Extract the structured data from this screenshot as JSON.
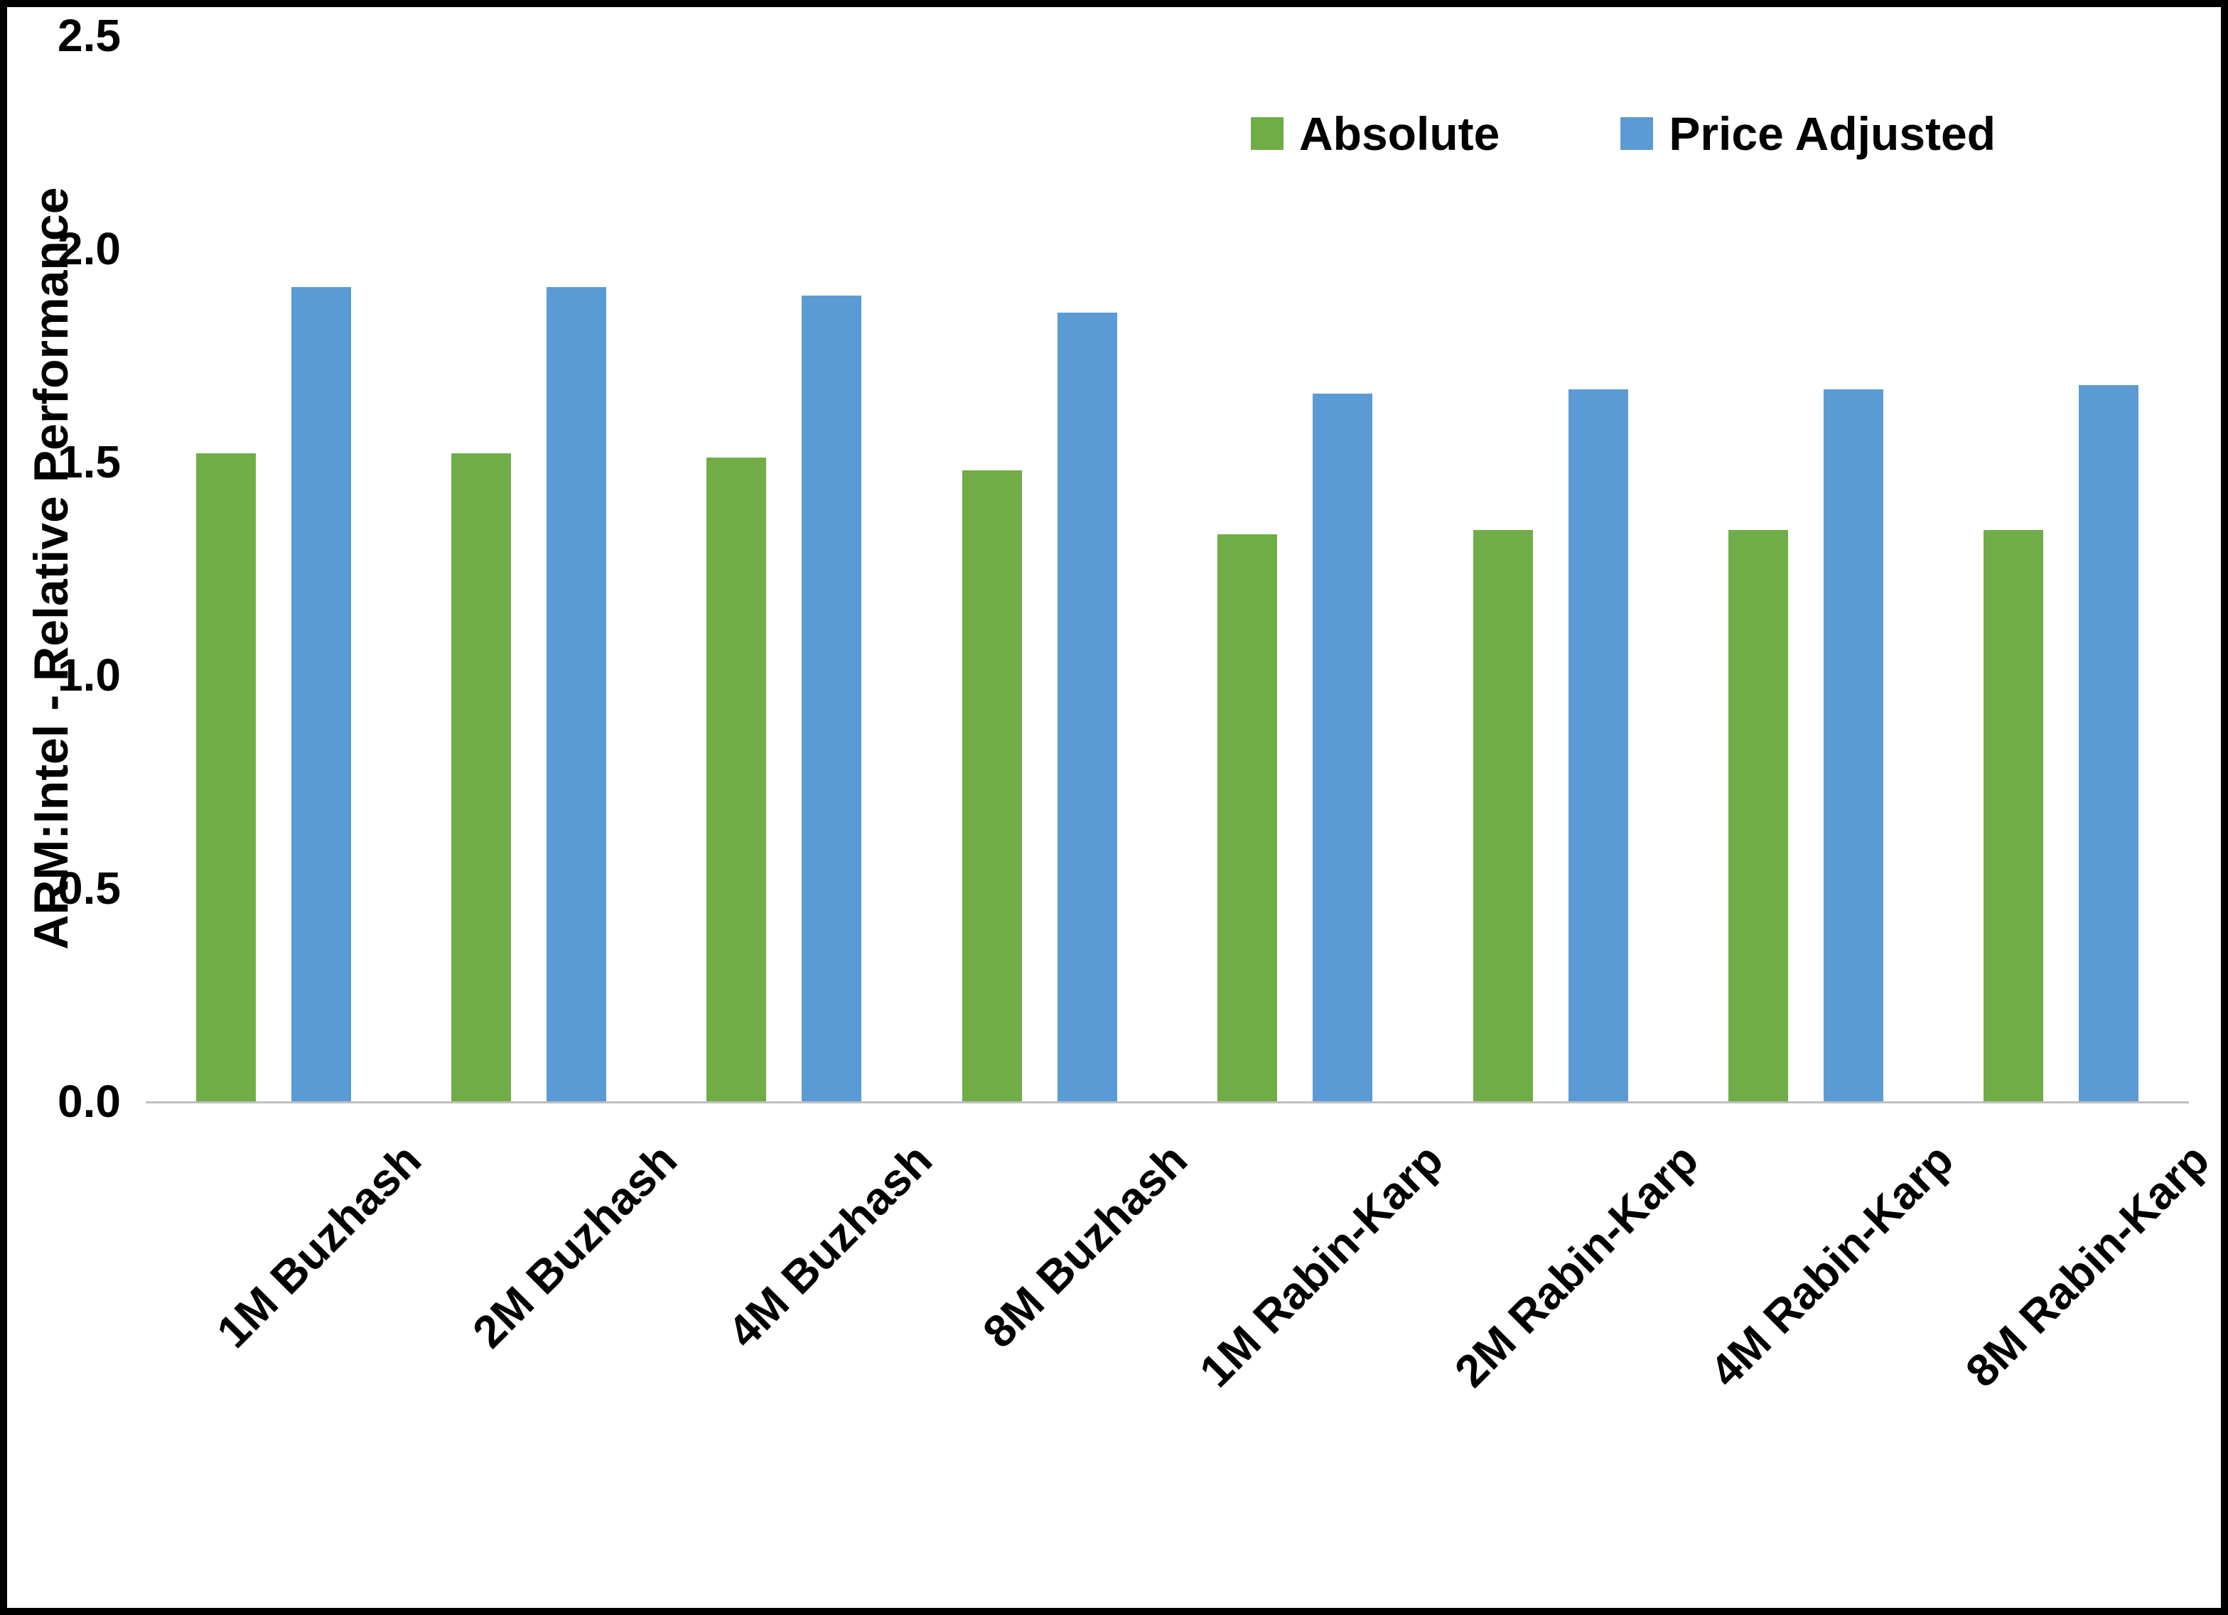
{
  "chart_data": {
    "type": "bar",
    "title": "",
    "xlabel": "",
    "ylabel": "ARM:Intel - Relative Performance",
    "ylim": [
      0,
      2.5
    ],
    "yticks": [
      "0.0",
      "0.5",
      "1.0",
      "1.5",
      "2.0",
      "2.5"
    ],
    "grid": false,
    "legend_position": "top-right",
    "axis_color": "#BFBFBF",
    "categories": [
      "1M Buzhash",
      "2M Buzhash",
      "4M Buzhash",
      "8M Buzhash",
      "1M Rabin-Karp",
      "2M Rabin-Karp",
      "4M Rabin-Karp",
      "8M Rabin-Karp"
    ],
    "series": [
      {
        "name": "Absolute",
        "color": "#70AD47",
        "values": [
          1.52,
          1.52,
          1.51,
          1.48,
          1.33,
          1.34,
          1.34,
          1.34
        ]
      },
      {
        "name": "Price Adjusted",
        "color": "#5B9BD5",
        "values": [
          1.91,
          1.91,
          1.89,
          1.85,
          1.66,
          1.67,
          1.67,
          1.68
        ]
      }
    ]
  },
  "colors": {
    "frame_border": "#000000",
    "text": "#000000"
  }
}
